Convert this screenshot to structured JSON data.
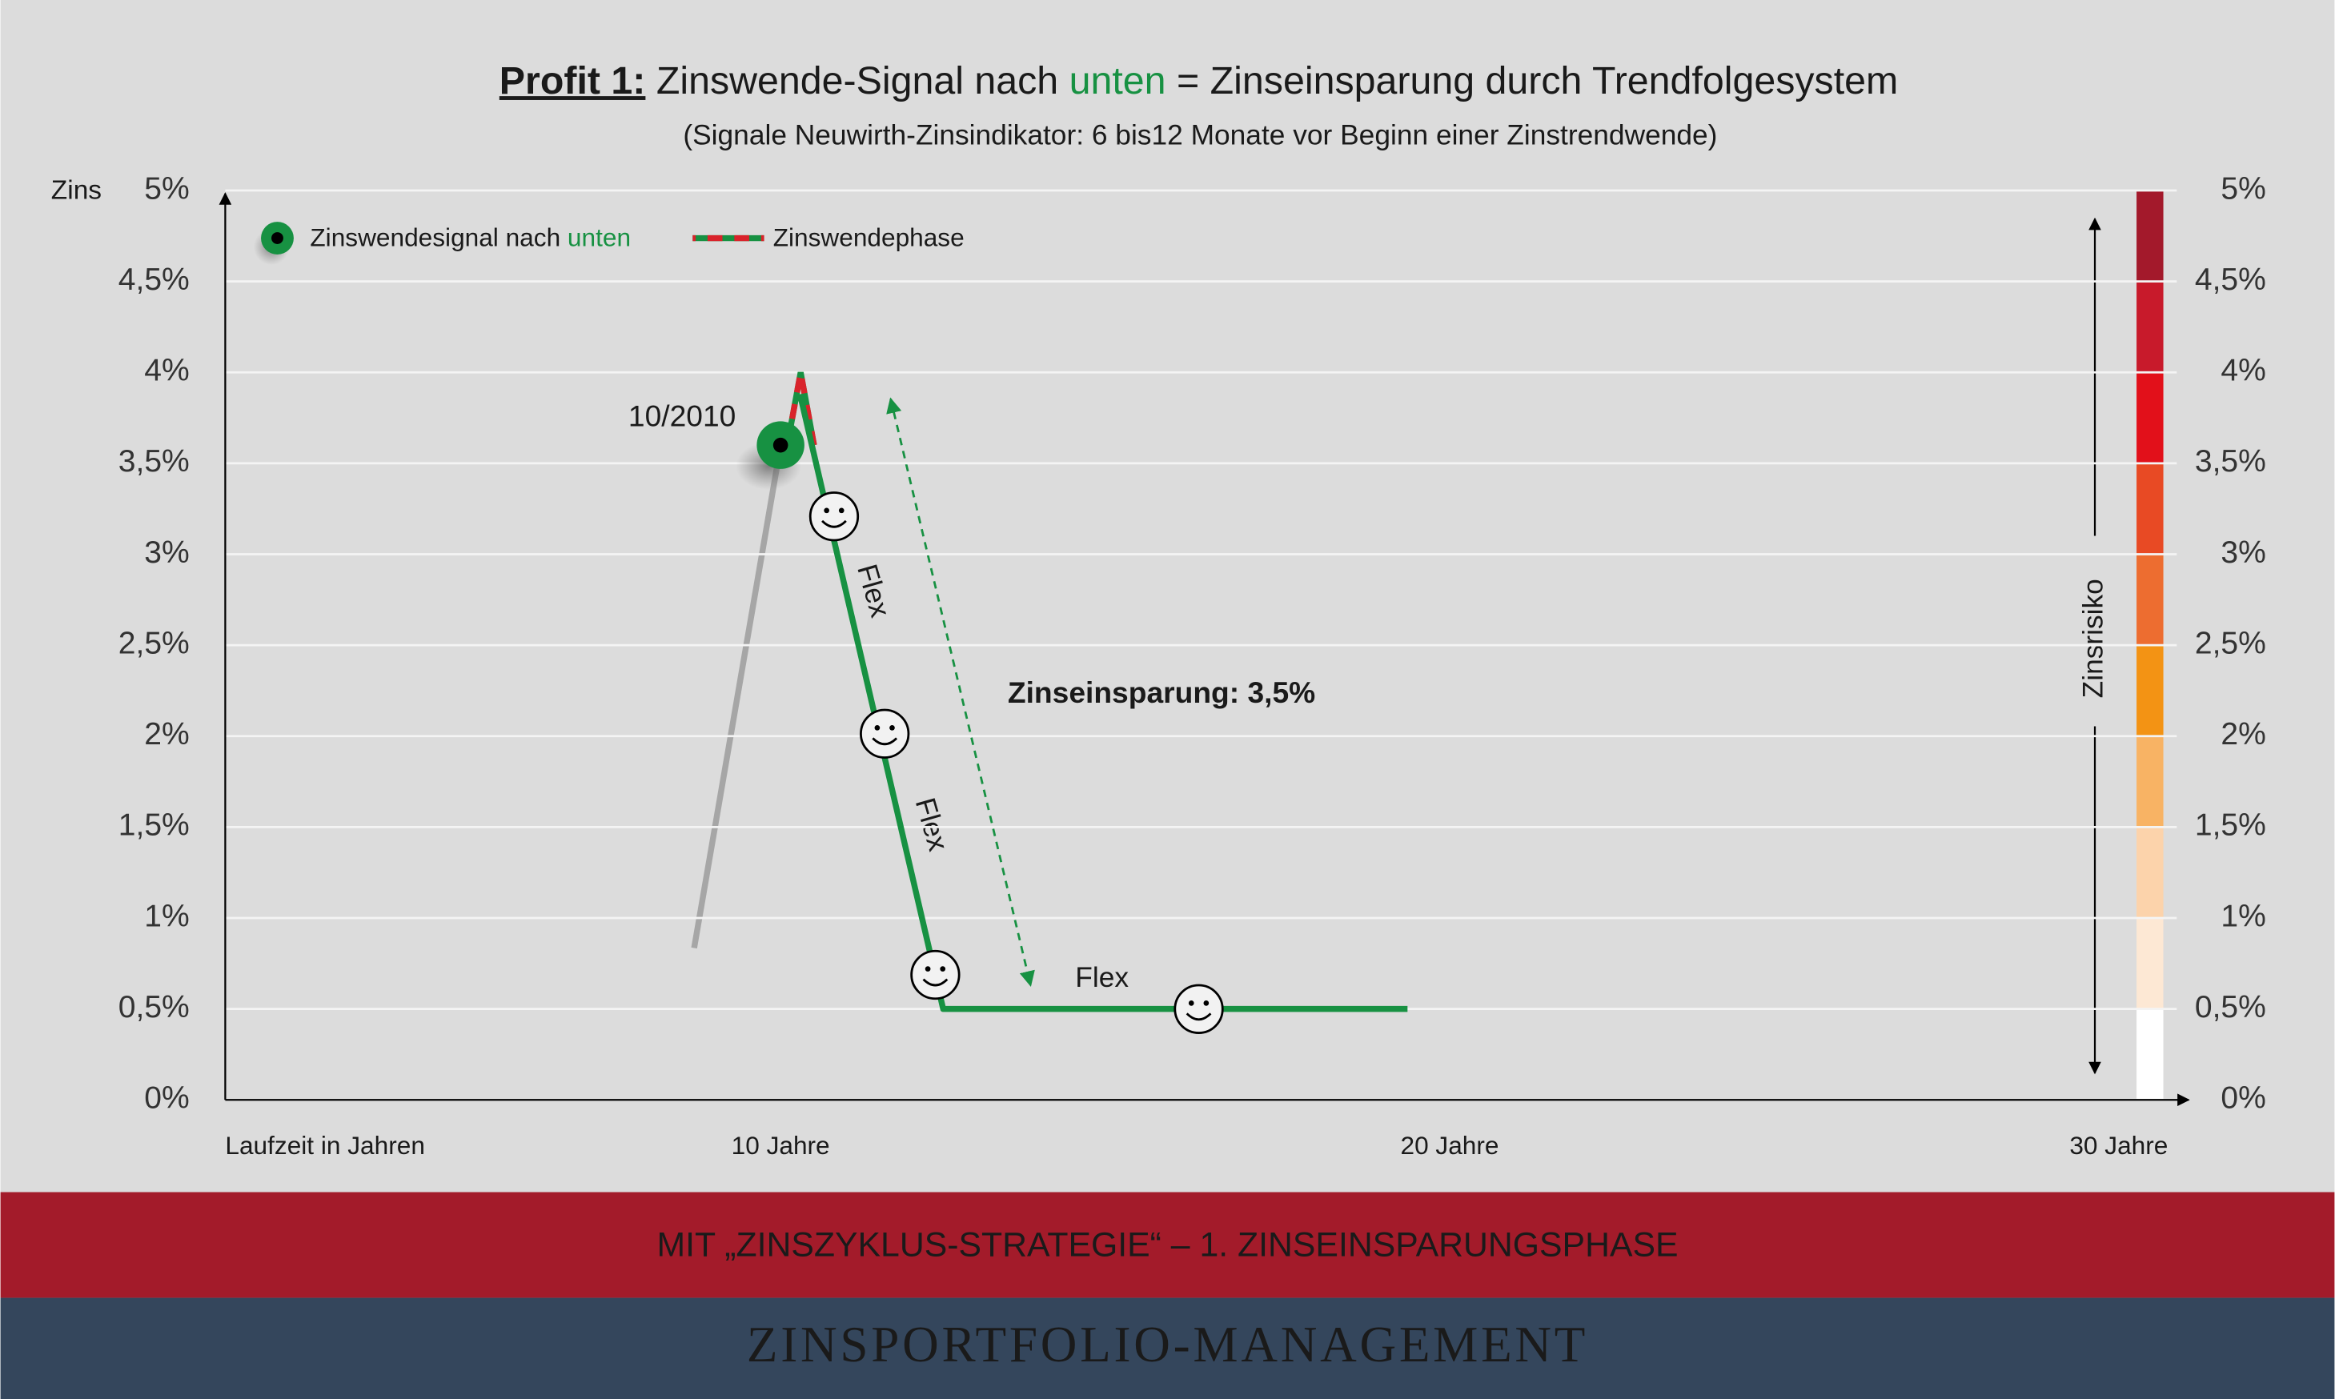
{
  "chart_data": {
    "type": "line",
    "title": {
      "prefix": "Profit 1:",
      "part1": " Zinswende-Signal nach ",
      "highlight": "unten",
      "part2": " = Zinseinsparung durch Trendfolgesystem"
    },
    "subtitle": "(Signale Neuwirth-Zinsindikator: 6 bis12 Monate vor Beginn einer Zinstrendwende)",
    "y_label": "Zins",
    "x_label": "Laufzeit in Jahren",
    "y2_label": "Zinsrisiko",
    "xlim": [
      1.7,
      30.8
    ],
    "xticks": [
      {
        "value": 10,
        "label": "10 Jahre"
      },
      {
        "value": 20,
        "label": "20 Jahre"
      },
      {
        "value": 30,
        "label": "30 Jahre"
      }
    ],
    "ylim": [
      0,
      5
    ],
    "yticks": [
      {
        "value": 0,
        "label": "0%"
      },
      {
        "value": 0.5,
        "label": "0,5%"
      },
      {
        "value": 1,
        "label": "1%"
      },
      {
        "value": 1.5,
        "label": "1,5%"
      },
      {
        "value": 2,
        "label": "2%"
      },
      {
        "value": 2.5,
        "label": "2,5%"
      },
      {
        "value": 3,
        "label": "3%"
      },
      {
        "value": 3.5,
        "label": "3,5%"
      },
      {
        "value": 4,
        "label": "4%"
      },
      {
        "value": 4.5,
        "label": "4,5%"
      },
      {
        "value": 5,
        "label": "5%"
      }
    ],
    "y2lim": [
      0,
      5
    ],
    "y2ticks": [
      {
        "value": 0,
        "label": "0%"
      },
      {
        "value": 0.5,
        "label": "0,5%"
      },
      {
        "value": 1,
        "label": "1%"
      },
      {
        "value": 1.5,
        "label": "1,5%"
      },
      {
        "value": 2,
        "label": "2%"
      },
      {
        "value": 2.5,
        "label": "2,5%"
      },
      {
        "value": 3,
        "label": "3%"
      },
      {
        "value": 3.5,
        "label": "3,5%"
      },
      {
        "value": 4,
        "label": "4%"
      },
      {
        "value": 4.5,
        "label": "4,5%"
      },
      {
        "value": 5,
        "label": "5%"
      }
    ],
    "grid": true,
    "risk_colors": [
      "#ffffff",
      "#fde8d4",
      "#fcd3ab",
      "#f8b364",
      "#f39314",
      "#ed6d30",
      "#e84a24",
      "#e2101a",
      "#c81a2b",
      "#a3192b"
    ],
    "series": [
      {
        "color": "#179142",
        "x": [
          10.29,
          12.43,
          19.37
        ],
        "values": [
          3.88,
          0.5,
          0.5
        ]
      },
      {
        "name": "Zinswendephase",
        "color": "#d9232b",
        "x": [
          10.1,
          10.3,
          10.5
        ],
        "values": [
          3.6,
          4.0,
          3.6
        ]
      }
    ],
    "signal": {
      "name_prefix": "Zinswendesignal nach ",
      "name_highlight": "unten",
      "label": "10/2010",
      "x": 10.0,
      "y": 3.6,
      "color": "#179142"
    },
    "annotations": [
      "Flex",
      "Flex",
      "Flex",
      "Zinseinsparung: 3,5%"
    ],
    "banner": "MIT „ZINSZYKLUS-STRATEGIE“ – 1. ZINSEINSPARUNGSPHASE",
    "footer": "ZINSPORTFOLIO-MANAGEMENT"
  }
}
